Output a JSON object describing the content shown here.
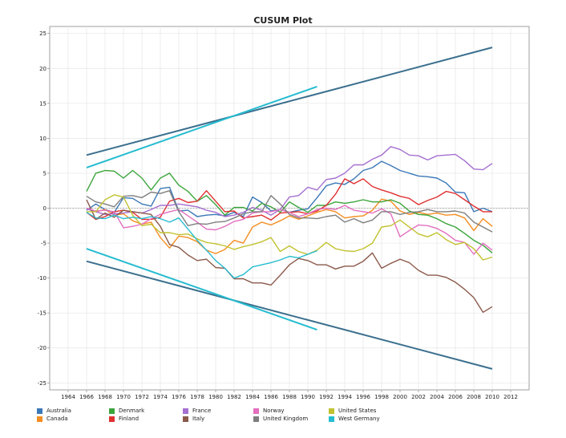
{
  "chart_data": {
    "type": "line",
    "title": "CUSUM Plot",
    "xlabel": "",
    "ylabel": "",
    "xlim": [
      1962,
      2014
    ],
    "ylim": [
      -26,
      26
    ],
    "xticks": [
      1964,
      1966,
      1968,
      1970,
      1972,
      1974,
      1976,
      1978,
      1980,
      1982,
      1984,
      1986,
      1988,
      1990,
      1992,
      1994,
      1996,
      1998,
      2000,
      2002,
      2004,
      2006,
      2008,
      2010,
      2012
    ],
    "xtick_labels": [
      "1964",
      "1966",
      "1968",
      "1970",
      "1972",
      "1974",
      "1976",
      "1978",
      "1980",
      "1982",
      "1984",
      "1986",
      "1988",
      "1990",
      "1992",
      "1994",
      "1996",
      "1998",
      "2000",
      "2002",
      "2004",
      "2006",
      "2008",
      "2010",
      "2012"
    ],
    "yticks": [
      -25,
      -20,
      -15,
      -10,
      -5,
      0,
      5,
      10,
      15,
      20,
      25
    ],
    "ytick_labels": [
      "-25",
      "-20",
      "-15",
      "-10",
      "-5",
      "0",
      "5",
      "10",
      "15",
      "20",
      "25"
    ],
    "x": [
      1966,
      1967,
      1968,
      1969,
      1970,
      1971,
      1972,
      1973,
      1974,
      1975,
      1976,
      1977,
      1978,
      1979,
      1980,
      1981,
      1982,
      1983,
      1984,
      1985,
      1986,
      1987,
      1988,
      1989,
      1990,
      1991,
      1992,
      1993,
      1994,
      1995,
      1996,
      1997,
      1998,
      1999,
      2000,
      2001,
      2002,
      2003,
      2004,
      2005,
      2006,
      2007,
      2008,
      2009,
      2010
    ],
    "series": [
      {
        "name": "Australia",
        "color": "#3b78b7",
        "values": [
          -0.3,
          0.6,
          -0.2,
          -0.6,
          1.5,
          1.4,
          0.6,
          0.3,
          2.8,
          3.0,
          -0.4,
          -0.3,
          -1.2,
          -1.0,
          -0.9,
          -1.1,
          -0.6,
          -1.2,
          1.6,
          0.8,
          -0.4,
          -0.2,
          -0.6,
          -0.3,
          -0.1,
          1.5,
          3.2,
          3.6,
          3.4,
          4.2,
          5.4,
          5.8,
          6.7,
          6.1,
          5.4,
          5.0,
          4.6,
          4.5,
          4.3,
          3.6,
          2.3,
          2.2,
          -0.5,
          0.0,
          -0.5
        ]
      },
      {
        "name": "Canada",
        "color": "#f58e22",
        "values": [
          0.0,
          -0.5,
          -0.2,
          -1.0,
          -0.8,
          -1.8,
          -2.3,
          -2.0,
          -4.2,
          -5.7,
          -4.0,
          -4.2,
          -4.8,
          -6.0,
          -6.5,
          -5.9,
          -4.6,
          -5.0,
          -2.7,
          -2.0,
          -2.4,
          -1.8,
          -1.1,
          -1.6,
          -1.1,
          -0.6,
          -0.2,
          -0.5,
          -1.4,
          -1.2,
          -1.1,
          -0.3,
          1.3,
          1.0,
          -0.4,
          -0.9,
          -0.6,
          -0.9,
          -0.7,
          -1.0,
          -0.9,
          -1.4,
          -3.2,
          -1.5,
          -2.6
        ]
      },
      {
        "name": "Denmark",
        "color": "#3ba53b",
        "values": [
          2.4,
          5.0,
          5.4,
          5.3,
          4.3,
          5.4,
          4.3,
          2.6,
          4.3,
          5.0,
          3.3,
          2.4,
          1.0,
          1.8,
          0.5,
          -1.0,
          0.1,
          0.1,
          -0.4,
          0.7,
          0.2,
          -0.6,
          0.9,
          0.1,
          -0.6,
          0.4,
          0.4,
          0.9,
          0.7,
          0.9,
          1.2,
          0.9,
          0.9,
          1.2,
          0.7,
          -0.4,
          -0.9,
          -1.0,
          -1.5,
          -2.2,
          -2.7,
          -3.6,
          -4.6,
          -5.3,
          -6.4
        ]
      },
      {
        "name": "Finland",
        "color": "#e03030",
        "values": [
          -0.6,
          -1.6,
          -1.2,
          -0.5,
          -0.3,
          -0.6,
          -1.6,
          -1.6,
          -1.3,
          1.0,
          1.4,
          0.8,
          1.0,
          2.5,
          1.0,
          -0.5,
          -0.4,
          -1.4,
          -1.2,
          -1.0,
          -1.7,
          -0.7,
          -0.6,
          -0.5,
          -0.8,
          -0.4,
          0.4,
          2.0,
          4.2,
          3.5,
          4.2,
          3.1,
          2.6,
          2.2,
          1.7,
          1.4,
          0.5,
          1.1,
          1.6,
          2.4,
          2.1,
          1.2,
          0.3,
          -0.5,
          -0.5
        ]
      },
      {
        "name": "France",
        "color": "#a670d0",
        "values": [
          -0.1,
          -0.5,
          -0.9,
          -0.8,
          -0.7,
          -0.5,
          -0.7,
          -0.2,
          0.4,
          0.4,
          0.6,
          0.4,
          0.2,
          -0.3,
          -0.6,
          -1.2,
          -1.0,
          -0.6,
          0.1,
          -0.3,
          -1.0,
          -0.2,
          1.6,
          1.8,
          3.0,
          2.6,
          4.1,
          4.3,
          5.0,
          6.2,
          6.2,
          7.0,
          7.6,
          8.8,
          8.4,
          7.6,
          7.5,
          6.9,
          7.5,
          7.6,
          7.7,
          6.8,
          5.6,
          5.5,
          6.4
        ]
      },
      {
        "name": "Italy",
        "color": "#8b5a4b",
        "values": [
          1.2,
          -1.6,
          -0.7,
          -1.3,
          -0.3,
          -0.5,
          -0.7,
          -0.9,
          -2.6,
          -5.2,
          -5.6,
          -6.7,
          -7.5,
          -7.3,
          -8.5,
          -8.6,
          -10.1,
          -10.1,
          -10.7,
          -10.7,
          -11.0,
          -9.6,
          -8.1,
          -7.2,
          -7.5,
          -8.1,
          -8.1,
          -8.7,
          -8.3,
          -8.3,
          -7.6,
          -6.4,
          -8.6,
          -7.9,
          -7.3,
          -7.8,
          -8.9,
          -9.6,
          -9.6,
          -9.9,
          -10.6,
          -11.6,
          -12.8,
          -14.9,
          -14.1
        ]
      },
      {
        "name": "Norway",
        "color": "#e36fc0",
        "values": [
          0.0,
          -0.4,
          -0.3,
          -0.5,
          -2.8,
          -2.6,
          -2.3,
          -1.5,
          -0.9,
          -0.5,
          -0.2,
          -1.1,
          -2.0,
          -3.0,
          -3.1,
          -2.6,
          -1.9,
          -1.6,
          -0.7,
          -0.5,
          -0.5,
          -0.2,
          -0.6,
          -1.2,
          -0.8,
          -0.2,
          0.0,
          -0.2,
          0.4,
          -0.3,
          -0.5,
          -0.7,
          -0.1,
          -0.8,
          -4.1,
          -3.2,
          -2.4,
          -2.5,
          -2.9,
          -3.6,
          -4.6,
          -4.9,
          -6.6,
          -5.0,
          -6.0
        ]
      },
      {
        "name": "United Kingdom",
        "color": "#7f7f7f",
        "values": [
          1.7,
          0.9,
          0.6,
          0.2,
          1.7,
          1.8,
          1.5,
          2.3,
          2.1,
          2.5,
          -0.5,
          -2.5,
          -2.2,
          -2.3,
          -2.0,
          -1.9,
          -1.4,
          -0.8,
          -0.5,
          -0.5,
          1.8,
          0.6,
          -0.9,
          -1.4,
          -1.4,
          -1.5,
          -1.2,
          -1.0,
          -2.0,
          -1.5,
          -2.1,
          -1.7,
          -0.5,
          -0.5,
          -0.9,
          -0.6,
          -0.5,
          -0.2,
          -0.5,
          -0.5,
          -0.4,
          -0.7,
          -2.0,
          -2.7,
          -3.4
        ]
      },
      {
        "name": "United States",
        "color": "#c2c231",
        "values": [
          -0.5,
          -0.5,
          1.2,
          1.9,
          1.6,
          -1.0,
          -2.5,
          -2.3,
          -3.5,
          -3.5,
          -3.8,
          -3.7,
          -4.4,
          -4.9,
          -5.1,
          -5.4,
          -5.9,
          -5.5,
          -5.2,
          -4.8,
          -4.2,
          -6.2,
          -5.4,
          -6.2,
          -6.6,
          -6.0,
          -4.9,
          -5.8,
          -6.1,
          -6.2,
          -5.8,
          -5.0,
          -2.7,
          -2.5,
          -1.7,
          -2.7,
          -3.7,
          -4.1,
          -3.5,
          -4.5,
          -5.2,
          -4.9,
          -5.8,
          -7.4,
          -7.0
        ]
      },
      {
        "name": "West Germany",
        "color": "#26bcd0",
        "values": [
          -0.6,
          -1.4,
          -1.5,
          -1.0,
          -1.5,
          -1.3,
          -1.5,
          -1.2,
          -1.5,
          -2.0,
          -1.4,
          -3.0,
          -4.6,
          -6.0,
          -7.5,
          -8.6,
          -10.0,
          -9.5,
          -8.4,
          -8.1,
          -7.8,
          -7.4,
          -6.9,
          -7.1,
          -6.6,
          -6.1,
          null,
          null,
          null,
          null,
          null,
          null,
          null,
          null,
          null,
          null,
          null,
          null,
          null,
          null,
          null,
          null,
          null,
          null,
          null
        ]
      }
    ],
    "control_limits": [
      {
        "name": "Upper limit",
        "color": "#3a6f8e",
        "x": [
          1966,
          2010
        ],
        "values": [
          7.6,
          23.0
        ]
      },
      {
        "name": "Lower limit",
        "color": "#3a6f8e",
        "x": [
          1966,
          2010
        ],
        "values": [
          -7.6,
          -23.0
        ]
      },
      {
        "name": "Upper limit (West Germany)",
        "color": "#26bcd0",
        "x": [
          1966,
          1991
        ],
        "values": [
          5.8,
          17.4
        ]
      },
      {
        "name": "Lower limit (West Germany)",
        "color": "#26bcd0",
        "x": [
          1966,
          1991
        ],
        "values": [
          -5.8,
          -17.4
        ]
      }
    ],
    "legend": {
      "placement": "bottom",
      "entries": [
        {
          "label": "Australia",
          "color": "#3b78b7"
        },
        {
          "label": "Denmark",
          "color": "#3ba53b"
        },
        {
          "label": "France",
          "color": "#a670d0"
        },
        {
          "label": "Norway",
          "color": "#e36fc0"
        },
        {
          "label": "United States",
          "color": "#c2c231"
        },
        {
          "label": "Canada",
          "color": "#f58e22"
        },
        {
          "label": "Finland",
          "color": "#e03030"
        },
        {
          "label": "Italy",
          "color": "#8b5a4b"
        },
        {
          "label": "United Kingdom",
          "color": "#7f7f7f"
        },
        {
          "label": "West Germany",
          "color": "#26bcd0"
        }
      ]
    }
  }
}
